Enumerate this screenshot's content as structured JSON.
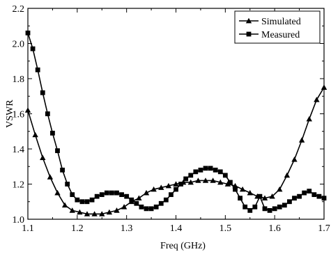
{
  "chart_data": {
    "type": "line",
    "xlabel": "Freq (GHz)",
    "ylabel": "VSWR",
    "xlim": [
      1.1,
      1.7
    ],
    "ylim": [
      1.0,
      2.2
    ],
    "x_ticks": [
      "1.1",
      "1.2",
      "1.3",
      "1.4",
      "1.5",
      "1.6",
      "1.7"
    ],
    "y_ticks": [
      "1.0",
      "1.2",
      "1.4",
      "1.6",
      "1.8",
      "2.0",
      "2.2"
    ],
    "grid": false,
    "legend_position": "top-right",
    "series": [
      {
        "name": "Simulated",
        "marker": "triangle",
        "x": [
          1.1,
          1.115,
          1.13,
          1.145,
          1.16,
          1.175,
          1.19,
          1.205,
          1.22,
          1.235,
          1.25,
          1.265,
          1.28,
          1.295,
          1.31,
          1.325,
          1.34,
          1.355,
          1.37,
          1.385,
          1.4,
          1.415,
          1.43,
          1.445,
          1.46,
          1.475,
          1.49,
          1.505,
          1.52,
          1.535,
          1.55,
          1.565,
          1.58,
          1.595,
          1.61,
          1.625,
          1.64,
          1.655,
          1.67,
          1.685,
          1.7
        ],
        "y": [
          1.62,
          1.48,
          1.35,
          1.24,
          1.15,
          1.08,
          1.05,
          1.04,
          1.03,
          1.03,
          1.03,
          1.04,
          1.05,
          1.07,
          1.1,
          1.12,
          1.15,
          1.17,
          1.18,
          1.19,
          1.2,
          1.21,
          1.21,
          1.22,
          1.22,
          1.22,
          1.21,
          1.2,
          1.19,
          1.17,
          1.15,
          1.13,
          1.12,
          1.13,
          1.17,
          1.25,
          1.34,
          1.45,
          1.57,
          1.68,
          1.75
        ]
      },
      {
        "name": "Measured",
        "marker": "square",
        "x": [
          1.1,
          1.11,
          1.12,
          1.13,
          1.14,
          1.15,
          1.16,
          1.17,
          1.18,
          1.19,
          1.2,
          1.21,
          1.22,
          1.23,
          1.24,
          1.25,
          1.26,
          1.27,
          1.28,
          1.29,
          1.3,
          1.31,
          1.32,
          1.33,
          1.34,
          1.35,
          1.36,
          1.37,
          1.38,
          1.39,
          1.4,
          1.41,
          1.42,
          1.43,
          1.44,
          1.45,
          1.46,
          1.47,
          1.48,
          1.49,
          1.5,
          1.51,
          1.52,
          1.53,
          1.54,
          1.55,
          1.56,
          1.57,
          1.58,
          1.59,
          1.6,
          1.61,
          1.62,
          1.63,
          1.64,
          1.65,
          1.66,
          1.67,
          1.68,
          1.69,
          1.7
        ],
        "y": [
          2.06,
          1.97,
          1.85,
          1.72,
          1.6,
          1.49,
          1.39,
          1.28,
          1.2,
          1.14,
          1.11,
          1.1,
          1.1,
          1.11,
          1.13,
          1.14,
          1.15,
          1.15,
          1.15,
          1.14,
          1.13,
          1.11,
          1.09,
          1.07,
          1.06,
          1.06,
          1.07,
          1.09,
          1.11,
          1.14,
          1.17,
          1.2,
          1.23,
          1.25,
          1.27,
          1.28,
          1.29,
          1.29,
          1.28,
          1.27,
          1.25,
          1.21,
          1.17,
          1.12,
          1.07,
          1.05,
          1.07,
          1.13,
          1.06,
          1.05,
          1.06,
          1.07,
          1.08,
          1.1,
          1.12,
          1.13,
          1.15,
          1.16,
          1.14,
          1.13,
          1.12
        ]
      }
    ]
  }
}
